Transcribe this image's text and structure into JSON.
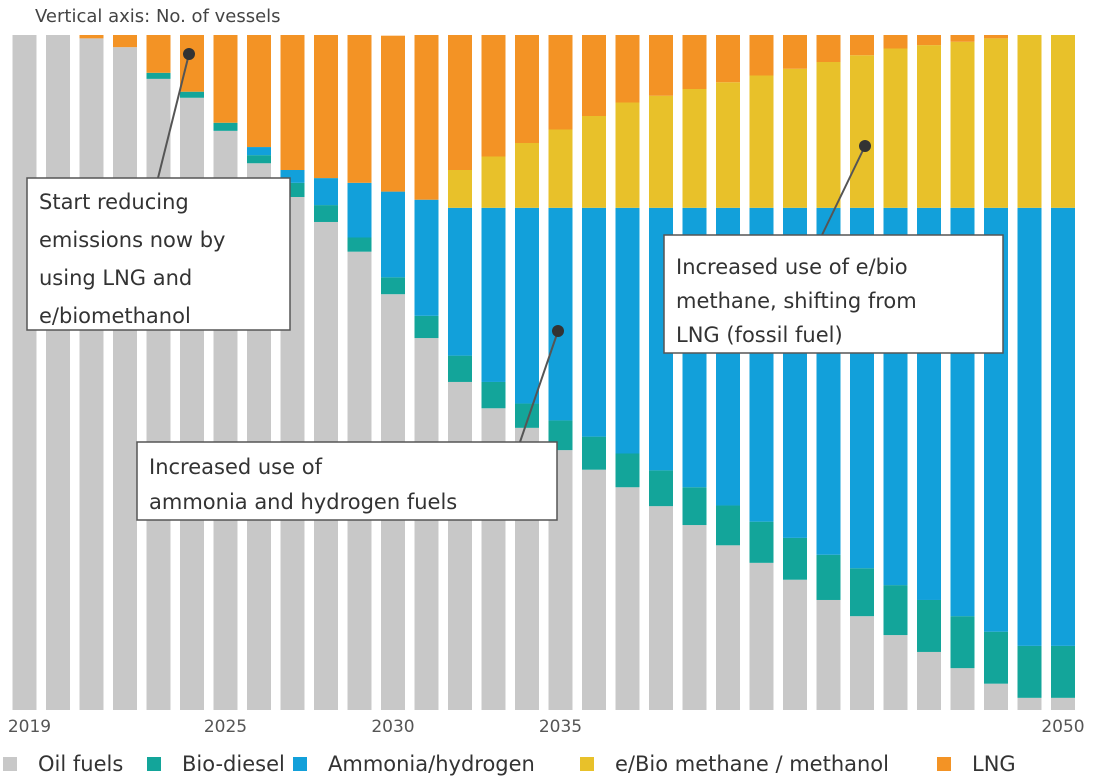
{
  "chart_data": {
    "type": "stacked_bar",
    "subtitle": "Vertical axis: No. of vessels",
    "categories": [
      "2019",
      null,
      null,
      null,
      null,
      null,
      "2025",
      null,
      null,
      null,
      null,
      "2030",
      null,
      null,
      null,
      null,
      "2035",
      null,
      null,
      null,
      null,
      null,
      null,
      null,
      null,
      null,
      null,
      null,
      null,
      null,
      null,
      "2050"
    ],
    "ylim": [
      0,
      100
    ],
    "series": [
      {
        "name": "Oil fuels",
        "color": "#c8c8c8",
        "values": [
          100,
          100,
          99.5,
          98.2,
          93.5,
          90.7,
          85.8,
          81.0,
          76.0,
          72.3,
          67.9,
          61.6,
          55.1,
          48.6,
          44.7,
          41.8,
          38.5,
          35.6,
          33.0,
          30.2,
          27.4,
          24.4,
          21.8,
          19.3,
          16.3,
          13.9,
          11.1,
          8.6,
          6.2,
          3.9,
          1.8,
          1.8
        ]
      },
      {
        "name": "Bio-diesel",
        "color": "#13a59a",
        "values": [
          0,
          0,
          0,
          0,
          0.9,
          0.9,
          1.2,
          1.2,
          2.1,
          2.5,
          2.1,
          2.5,
          3.3,
          3.9,
          3.9,
          3.6,
          4.4,
          4.9,
          5.0,
          5.3,
          5.6,
          5.9,
          6.1,
          6.2,
          6.7,
          7.1,
          7.4,
          7.7,
          7.7,
          7.7,
          7.7,
          7.7
        ]
      },
      {
        "name": "Ammonia/hydrogen",
        "color": "#12a0da",
        "values": [
          0,
          0,
          0,
          0,
          0,
          0,
          0,
          1.2,
          1.9,
          4.0,
          8.1,
          12.7,
          17.2,
          21.9,
          25.8,
          29.0,
          31.5,
          33.9,
          36.4,
          38.9,
          41.4,
          44.1,
          46.5,
          48.9,
          51.4,
          53.4,
          55.9,
          58.1,
          60.5,
          62.8,
          64.9,
          64.9
        ]
      },
      {
        "name": "e/Bio methane / methanol",
        "color": "#e8c12a",
        "values": [
          0,
          0,
          0,
          0,
          0,
          0,
          0,
          0,
          0,
          0,
          0,
          0,
          0,
          5.6,
          7.6,
          9.6,
          11.6,
          13.6,
          15.6,
          16.6,
          17.6,
          18.6,
          19.6,
          20.6,
          21.6,
          22.6,
          23.6,
          24.1,
          24.6,
          25.1,
          25.6,
          25.6
        ]
      },
      {
        "name": "LNG",
        "color": "#f39325",
        "values": [
          0,
          0,
          0.5,
          1.8,
          5.6,
          8.4,
          13.0,
          16.6,
          20.0,
          21.2,
          21.9,
          23.1,
          24.4,
          20,
          18,
          16,
          14,
          12,
          10,
          9,
          8,
          7,
          6,
          5,
          4,
          3,
          2,
          1.5,
          1,
          0.5,
          0,
          0
        ]
      }
    ],
    "annotations": [
      {
        "lines": [
          "Start reducing",
          "emissions now by",
          "using LNG and",
          "e/biomethanol"
        ]
      },
      {
        "lines": [
          "Increased use of",
          "ammonia and hydrogen fuels"
        ]
      },
      {
        "lines": [
          "Increased use of e/bio",
          "methane, shifting from",
          "LNG (fossil fuel)"
        ]
      }
    ]
  }
}
